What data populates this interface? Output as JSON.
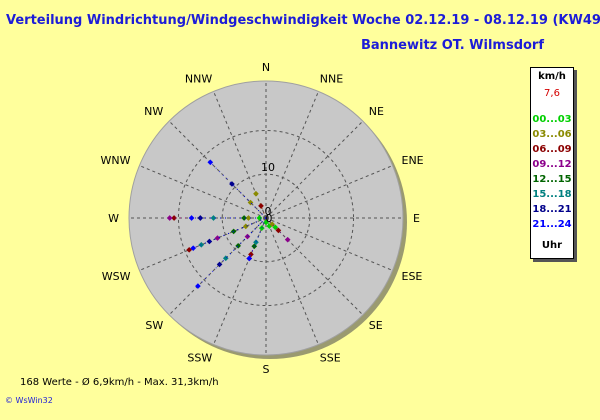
{
  "header": {
    "title": "Verteilung Windrichtung/Windgeschwindigkeit  Woche 02.12.19 - 08.12.19 (KW49)",
    "location": "Bannewitz OT. Wilmsdorf"
  },
  "legend": {
    "unit": "km/h",
    "current_speed": "7,6",
    "ranges": [
      {
        "label": "00...03",
        "color": "#00d000"
      },
      {
        "label": "03...06",
        "color": "#8a8a00"
      },
      {
        "label": "06...09",
        "color": "#8b0000"
      },
      {
        "label": "09...12",
        "color": "#8b008b"
      },
      {
        "label": "12...15",
        "color": "#006400"
      },
      {
        "label": "15...18",
        "color": "#008080"
      },
      {
        "label": "18...21",
        "color": "#00008b"
      },
      {
        "label": "21...24",
        "color": "#0000ff"
      }
    ],
    "footer": "Uhr"
  },
  "footer": {
    "stats": "168 Werte    -    Ø 6,9km/h   -   Max. 31,3km/h",
    "credit": "© WsWin32"
  },
  "chart_data": {
    "type": "scatter",
    "subtype": "polar wind rose",
    "directions": [
      "N",
      "NNE",
      "NE",
      "ENE",
      "E",
      "ESE",
      "SE",
      "SSE",
      "S",
      "SSW",
      "SW",
      "WSW",
      "W",
      "WNW",
      "NW",
      "NNW"
    ],
    "radial_ticks": [
      0,
      10
    ],
    "radial_max": 31.3,
    "grid": true,
    "background_colors": {
      "disc": "#c8c8c8",
      "disc_edge": "#a0a0a0",
      "grid": "#555555"
    },
    "series": [
      {
        "name": "00...03",
        "points": [
          {
            "dir": "SSE",
            "speed": 2.0
          },
          {
            "dir": "SE",
            "speed": 3.0
          },
          {
            "dir": "S",
            "speed": 1.0
          },
          {
            "dir": "W",
            "speed": 1.5
          },
          {
            "dir": "SSW",
            "speed": 2.5
          }
        ]
      },
      {
        "name": "03...06",
        "points": [
          {
            "dir": "NNW",
            "speed": 6.0
          },
          {
            "dir": "NW",
            "speed": 5.0
          },
          {
            "dir": "W",
            "speed": 4.0
          },
          {
            "dir": "SE",
            "speed": 2.0
          },
          {
            "dir": "WSW",
            "speed": 5.0
          }
        ]
      },
      {
        "name": "06...09",
        "points": [
          {
            "dir": "W",
            "speed": 21.0
          },
          {
            "dir": "WSW",
            "speed": 19.0
          },
          {
            "dir": "NNW",
            "speed": 3.0
          },
          {
            "dir": "SSW",
            "speed": 9.0
          },
          {
            "dir": "SE",
            "speed": 4.0
          }
        ]
      },
      {
        "name": "09...12",
        "points": [
          {
            "dir": "W",
            "speed": 22.0
          },
          {
            "dir": "SW",
            "speed": 6.0
          },
          {
            "dir": "SE",
            "speed": 7.0
          },
          {
            "dir": "SSW",
            "speed": 10.0
          },
          {
            "dir": "WSW",
            "speed": 12.0
          }
        ]
      },
      {
        "name": "12...15",
        "points": [
          {
            "dir": "WSW",
            "speed": 8.0
          },
          {
            "dir": "SW",
            "speed": 9.0
          },
          {
            "dir": "SSW",
            "speed": 7.0
          },
          {
            "dir": "W",
            "speed": 5.0
          }
        ]
      },
      {
        "name": "15...18",
        "points": [
          {
            "dir": "WSW",
            "speed": 16.0
          },
          {
            "dir": "SW",
            "speed": 13.0
          },
          {
            "dir": "W",
            "speed": 12.0
          },
          {
            "dir": "SSW",
            "speed": 6.0
          }
        ]
      },
      {
        "name": "18...21",
        "points": [
          {
            "dir": "SW",
            "speed": 15.0
          },
          {
            "dir": "WSW",
            "speed": 14.0
          },
          {
            "dir": "W",
            "speed": 15.0
          },
          {
            "dir": "NW",
            "speed": 11.0
          }
        ]
      },
      {
        "name": "21...24",
        "points": [
          {
            "dir": "SW",
            "speed": 22.0
          },
          {
            "dir": "SSW",
            "speed": 10.0
          },
          {
            "dir": "W",
            "speed": 17.0
          },
          {
            "dir": "WSW",
            "speed": 18.0
          },
          {
            "dir": "NW",
            "speed": 18.0
          }
        ]
      }
    ]
  }
}
